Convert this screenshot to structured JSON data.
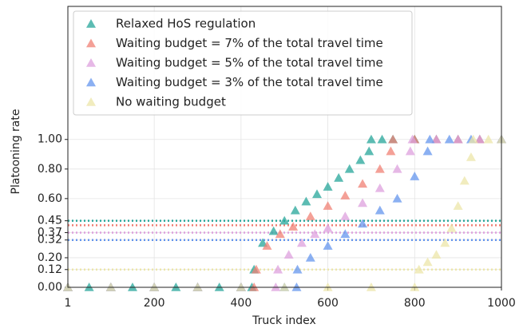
{
  "chart_data": {
    "type": "scatter",
    "xlabel": "Truck index",
    "ylabel": "Platooning rate",
    "xlim": [
      1,
      1000
    ],
    "ylim": [
      0,
      1.9
    ],
    "xticks": [
      1,
      200,
      400,
      600,
      800,
      1000
    ],
    "yticks": [
      {
        "value": 0,
        "label": "0.00"
      },
      {
        "value": 0.12,
        "label": "0.12"
      },
      {
        "value": 0.2,
        "label": "0.20"
      },
      {
        "value": 0.32,
        "label": "0.32"
      },
      {
        "value": 0.37,
        "label": "0.37"
      },
      {
        "value": 0.45,
        "label": "0.45"
      },
      {
        "value": 0.6,
        "label": "0.60"
      },
      {
        "value": 0.8,
        "label": "0.80"
      },
      {
        "value": 1.0,
        "label": "1.00"
      }
    ],
    "grid": true,
    "legend": "upper left",
    "marker": "triangle",
    "reference_lines": [
      {
        "value": 0.45,
        "color": "#26a69a"
      },
      {
        "value": 0.42,
        "color": "#f08074"
      },
      {
        "value": 0.37,
        "color": "#dda0dd"
      },
      {
        "value": 0.32,
        "color": "#6495ed"
      },
      {
        "value": 0.12,
        "color": "#ece6a8"
      }
    ],
    "series": [
      {
        "name": "Relaxed HoS regulation",
        "color": "#26a69a",
        "x": [
          1,
          50,
          100,
          150,
          200,
          250,
          300,
          350,
          400,
          425,
          430,
          450,
          475,
          500,
          525,
          550,
          575,
          600,
          625,
          650,
          675,
          695,
          700,
          725,
          750,
          800,
          850,
          900,
          950,
          1000
        ],
        "values": [
          0,
          0,
          0,
          0,
          0,
          0,
          0,
          0,
          0,
          0,
          0.12,
          0.3,
          0.38,
          0.45,
          0.52,
          0.58,
          0.63,
          0.68,
          0.74,
          0.8,
          0.86,
          0.92,
          1,
          1,
          1,
          1,
          1,
          1,
          1,
          1
        ]
      },
      {
        "name": "Waiting budget = 7% of the total travel time",
        "color": "#f08074",
        "x": [
          1,
          100,
          200,
          300,
          400,
          430,
          435,
          460,
          490,
          520,
          560,
          600,
          640,
          680,
          720,
          745,
          750,
          800,
          850,
          900,
          950,
          1000
        ],
        "values": [
          0,
          0,
          0,
          0,
          0,
          0,
          0.12,
          0.28,
          0.36,
          0.41,
          0.48,
          0.55,
          0.62,
          0.7,
          0.8,
          0.92,
          1,
          1,
          1,
          1,
          1,
          1
        ]
      },
      {
        "name": "Waiting budget = 5% of the total travel time",
        "color": "#dda0dd",
        "x": [
          1,
          100,
          200,
          300,
          400,
          480,
          485,
          510,
          540,
          570,
          600,
          640,
          680,
          720,
          760,
          790,
          795,
          850,
          900,
          950,
          1000
        ],
        "values": [
          0,
          0,
          0,
          0,
          0,
          0,
          0.12,
          0.22,
          0.3,
          0.36,
          0.4,
          0.48,
          0.57,
          0.67,
          0.8,
          0.92,
          1,
          1,
          1,
          1,
          1
        ]
      },
      {
        "name": "Waiting budget = 3% of the total travel time",
        "color": "#6495ed",
        "x": [
          1,
          100,
          200,
          300,
          400,
          500,
          528,
          530,
          560,
          600,
          640,
          680,
          720,
          760,
          800,
          830,
          835,
          880,
          930,
          1000
        ],
        "values": [
          0,
          0,
          0,
          0,
          0,
          0,
          0,
          0.12,
          0.2,
          0.28,
          0.36,
          0.43,
          0.52,
          0.6,
          0.75,
          0.92,
          1,
          1,
          1,
          1
        ]
      },
      {
        "name": "No waiting budget",
        "color": "#ece6a8",
        "x": [
          1,
          100,
          200,
          300,
          400,
          500,
          600,
          700,
          800,
          810,
          830,
          850,
          870,
          885,
          900,
          915,
          930,
          935,
          970,
          1000
        ],
        "values": [
          0,
          0,
          0,
          0,
          0,
          0,
          0,
          0,
          0,
          0.12,
          0.17,
          0.22,
          0.3,
          0.4,
          0.55,
          0.72,
          0.88,
          1,
          1,
          1
        ]
      }
    ]
  }
}
